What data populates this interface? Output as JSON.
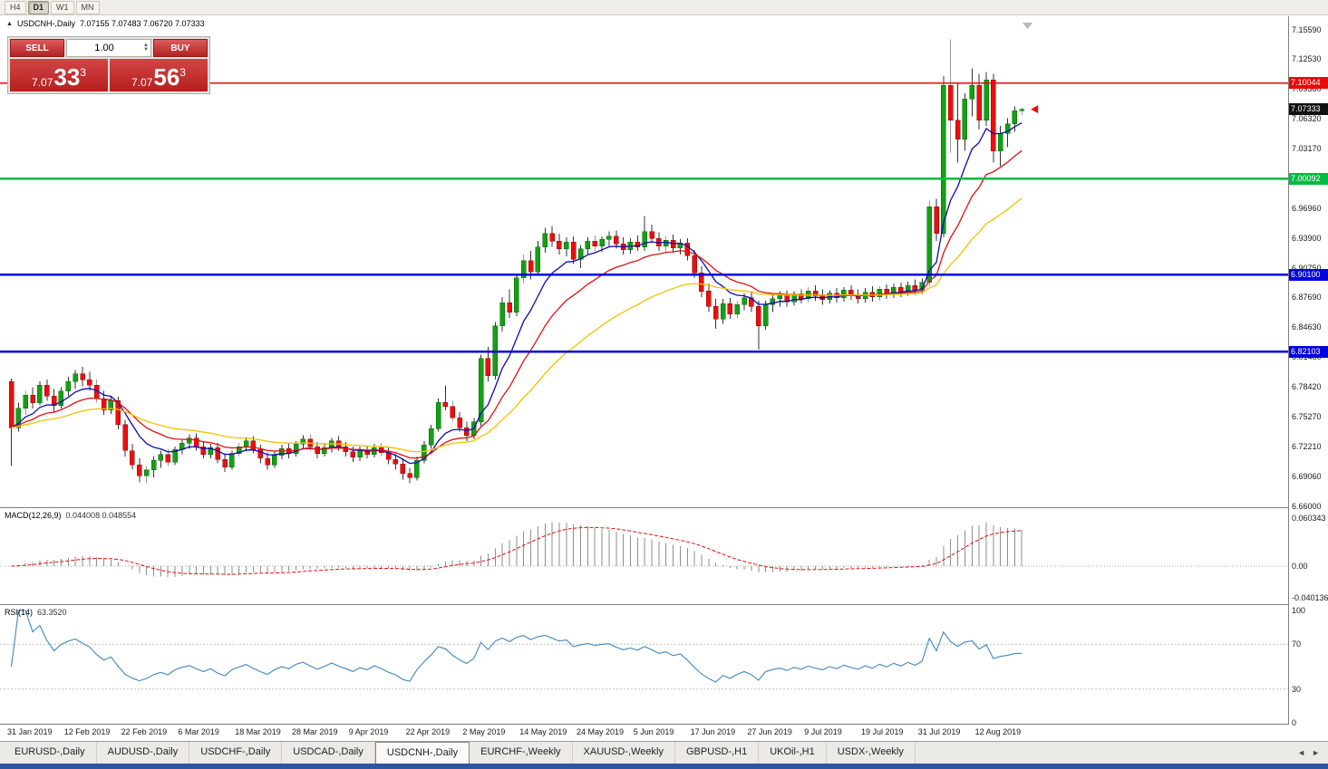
{
  "window": {
    "toolbar_periods": [
      {
        "label": "H4",
        "active": false
      },
      {
        "label": "D1",
        "active": true
      },
      {
        "label": "W1",
        "active": false
      },
      {
        "label": "MN",
        "active": false
      }
    ]
  },
  "chart": {
    "symbol_title": "USDCNH-,Daily",
    "ohlc_text": "7.07155 7.07483 7.06720 7.07333",
    "collapse_icon": "▲",
    "trade_widget": {
      "sell_label": "SELL",
      "buy_label": "BUY",
      "volume": "1.00",
      "spin_up": "▲",
      "spin_down": "▼",
      "sell_price": {
        "head": "7.07",
        "pips": "33",
        "sup": "3"
      },
      "buy_price": {
        "head": "7.07",
        "pips": "56",
        "sup": "3"
      }
    },
    "price_axis": [
      "7.15590",
      "7.12530",
      "7.09380",
      "7.06320",
      "7.03170",
      "7.00110",
      "6.96960",
      "6.93900",
      "6.90750",
      "6.87690",
      "6.84630",
      "6.81480",
      "6.78420",
      "6.75270",
      "6.72210",
      "6.69060",
      "6.66000"
    ],
    "levels": [
      {
        "value": 7.10044,
        "label": "7.10044",
        "color": "#e80b0b",
        "width": 1.4,
        "type": "resistance"
      },
      {
        "value": 7.00092,
        "label": "7.00092",
        "color": "#00bb44",
        "width": 2.4,
        "type": "support"
      },
      {
        "value": 6.901,
        "label": "6.90100",
        "color": "#0202dd",
        "width": 2.4,
        "type": "support"
      },
      {
        "value": 6.82103,
        "label": "6.82103",
        "color": "#0202dd",
        "width": 2.4,
        "type": "support"
      }
    ],
    "current_price": {
      "value": 7.07333,
      "label": "7.07333",
      "tag_color": "#111111"
    },
    "dates": [
      "31 Jan 2019",
      "12 Feb 2019",
      "22 Feb 2019",
      "6 Mar 2019",
      "18 Mar 2019",
      "28 Mar 2019",
      "9 Apr 2019",
      "22 Apr 2019",
      "2 May 2019",
      "14 May 2019",
      "24 May 2019",
      "5 Jun 2019",
      "17 Jun 2019",
      "27 Jun 2019",
      "9 Jul 2019",
      "19 Jul 2019",
      "31 Jul 2019",
      "12 Aug 2019"
    ]
  },
  "macd_panel": {
    "label": "MACD(12,26,9)",
    "values": "0.044008 0.048554",
    "axis": [
      "0.060343",
      "0.00",
      "-0.040136"
    ]
  },
  "rsi_panel": {
    "label": "RSI(14)",
    "value": "63.3520",
    "axis": [
      "100",
      "70",
      "30",
      "0"
    ],
    "guide_levels": [
      70,
      30
    ]
  },
  "tabs": {
    "items": [
      {
        "label": "EURUSD-,Daily",
        "active": false
      },
      {
        "label": "AUDUSD-,Daily",
        "active": false
      },
      {
        "label": "USDCHF-,Daily",
        "active": false
      },
      {
        "label": "USDCAD-,Daily",
        "active": false
      },
      {
        "label": "USDCNH-,Daily",
        "active": true
      },
      {
        "label": "EURCHF-,Weekly",
        "active": false
      },
      {
        "label": "XAUUSD-,Weekly",
        "active": false
      },
      {
        "label": "GBPUSD-,H1",
        "active": false
      },
      {
        "label": "UKOil-,H1",
        "active": false
      },
      {
        "label": "USDX-,Weekly",
        "active": false
      }
    ],
    "scroll_left": "◄",
    "scroll_right": "►"
  },
  "chart_data": {
    "type": "candlestick",
    "symbol": "USDCNH",
    "timeframe": "Daily",
    "price_range": [
      6.66,
      7.1559
    ],
    "x_tick_step_candles": 8,
    "up_color": "#12a112",
    "down_color": "#ed0e0e",
    "up_border": "#066306",
    "down_border": "#8f0404",
    "wick_color": "#333333",
    "moving_averages": [
      {
        "name": "fast-ma",
        "color": "#0b0bb0",
        "period": 8
      },
      {
        "name": "medium-ma",
        "color": "#e01010",
        "period": 16
      },
      {
        "name": "slow-ma",
        "color": "#f2c200",
        "period": 34
      }
    ],
    "indicators": {
      "macd": {
        "params": [
          12,
          26,
          9
        ],
        "current": 0.044008,
        "signal": 0.048554,
        "axis_range": [
          -0.040136,
          0.060343
        ]
      },
      "rsi": {
        "period": 14,
        "current": 63.352,
        "axis_range": [
          0,
          100
        ],
        "guides": [
          30,
          70
        ]
      }
    },
    "candles": [
      [
        6.79,
        6.793,
        6.702,
        6.742
      ],
      [
        6.742,
        6.768,
        6.738,
        6.762
      ],
      [
        6.762,
        6.78,
        6.755,
        6.776
      ],
      [
        6.776,
        6.784,
        6.762,
        6.768
      ],
      [
        6.768,
        6.79,
        6.765,
        6.786
      ],
      [
        6.786,
        6.792,
        6.77,
        6.775
      ],
      [
        6.775,
        6.782,
        6.758,
        6.765
      ],
      [
        6.765,
        6.784,
        6.762,
        6.78
      ],
      [
        6.78,
        6.795,
        6.775,
        6.79
      ],
      [
        6.79,
        6.802,
        6.782,
        6.798
      ],
      [
        6.798,
        6.805,
        6.785,
        6.792
      ],
      [
        6.792,
        6.8,
        6.78,
        6.786
      ],
      [
        6.786,
        6.792,
        6.768,
        6.772
      ],
      [
        6.772,
        6.78,
        6.755,
        6.76
      ],
      [
        6.76,
        6.775,
        6.756,
        6.77
      ],
      [
        6.77,
        6.774,
        6.74,
        6.745
      ],
      [
        6.745,
        6.75,
        6.712,
        6.718
      ],
      [
        6.718,
        6.725,
        6.698,
        6.703
      ],
      [
        6.703,
        6.71,
        6.685,
        6.692
      ],
      [
        6.692,
        6.702,
        6.684,
        6.698
      ],
      [
        6.698,
        6.712,
        6.69,
        6.708
      ],
      [
        6.708,
        6.718,
        6.7,
        6.714
      ],
      [
        6.714,
        6.72,
        6.702,
        6.706
      ],
      [
        6.706,
        6.722,
        6.703,
        6.719
      ],
      [
        6.719,
        6.73,
        6.714,
        6.726
      ],
      [
        6.726,
        6.735,
        6.72,
        6.731
      ],
      [
        6.731,
        6.736,
        6.718,
        6.722
      ],
      [
        6.722,
        6.728,
        6.71,
        6.714
      ],
      [
        6.714,
        6.725,
        6.71,
        6.721
      ],
      [
        6.721,
        6.726,
        6.705,
        6.709
      ],
      [
        6.709,
        6.715,
        6.696,
        6.701
      ],
      [
        6.701,
        6.718,
        6.698,
        6.715
      ],
      [
        6.715,
        6.726,
        6.712,
        6.722
      ],
      [
        6.722,
        6.732,
        6.717,
        6.728
      ],
      [
        6.728,
        6.733,
        6.715,
        6.719
      ],
      [
        6.719,
        6.724,
        6.705,
        6.71
      ],
      [
        6.71,
        6.716,
        6.698,
        6.703
      ],
      [
        6.703,
        6.717,
        6.7,
        6.713
      ],
      [
        6.713,
        6.724,
        6.709,
        6.72
      ],
      [
        6.72,
        6.726,
        6.71,
        6.715
      ],
      [
        6.715,
        6.728,
        6.712,
        6.725
      ],
      [
        6.725,
        6.734,
        6.72,
        6.73
      ],
      [
        6.73,
        6.735,
        6.718,
        6.722
      ],
      [
        6.722,
        6.727,
        6.71,
        6.715
      ],
      [
        6.715,
        6.726,
        6.712,
        6.721
      ],
      [
        6.721,
        6.731,
        6.716,
        6.728
      ],
      [
        6.728,
        6.733,
        6.718,
        6.722
      ],
      [
        6.722,
        6.727,
        6.712,
        6.717
      ],
      [
        6.717,
        6.722,
        6.706,
        6.711
      ],
      [
        6.711,
        6.722,
        6.707,
        6.718
      ],
      [
        6.718,
        6.723,
        6.71,
        6.714
      ],
      [
        6.714,
        6.725,
        6.711,
        6.721
      ],
      [
        6.721,
        6.726,
        6.712,
        6.716
      ],
      [
        6.716,
        6.721,
        6.704,
        6.709
      ],
      [
        6.709,
        6.714,
        6.698,
        6.704
      ],
      [
        6.704,
        6.71,
        6.688,
        6.694
      ],
      [
        6.694,
        6.7,
        6.684,
        6.69
      ],
      [
        6.69,
        6.712,
        6.687,
        6.708
      ],
      [
        6.708,
        6.728,
        6.705,
        6.724
      ],
      [
        6.724,
        6.745,
        6.72,
        6.741
      ],
      [
        6.741,
        6.772,
        6.738,
        6.768
      ],
      [
        6.768,
        6.786,
        6.76,
        6.764
      ],
      [
        6.764,
        6.77,
        6.748,
        6.752
      ],
      [
        6.752,
        6.758,
        6.738,
        6.742
      ],
      [
        6.742,
        6.748,
        6.728,
        6.734
      ],
      [
        6.734,
        6.752,
        6.73,
        6.748
      ],
      [
        6.748,
        6.818,
        6.744,
        6.814
      ],
      [
        6.814,
        6.826,
        6.79,
        6.796
      ],
      [
        6.796,
        6.852,
        6.792,
        6.848
      ],
      [
        6.848,
        6.878,
        6.842,
        6.872
      ],
      [
        6.872,
        6.886,
        6.856,
        6.862
      ],
      [
        6.862,
        6.902,
        6.858,
        6.898
      ],
      [
        6.898,
        6.922,
        6.892,
        6.916
      ],
      [
        6.916,
        6.926,
        6.896,
        6.904
      ],
      [
        6.904,
        6.936,
        6.9,
        6.93
      ],
      [
        6.93,
        6.95,
        6.924,
        6.944
      ],
      [
        6.944,
        6.952,
        6.93,
        6.936
      ],
      [
        6.936,
        6.944,
        6.922,
        6.928
      ],
      [
        6.928,
        6.94,
        6.92,
        6.935
      ],
      [
        6.935,
        6.941,
        6.912,
        6.917
      ],
      [
        6.917,
        6.932,
        6.908,
        6.928
      ],
      [
        6.928,
        6.94,
        6.922,
        6.936
      ],
      [
        6.936,
        6.942,
        6.926,
        6.931
      ],
      [
        6.931,
        6.941,
        6.925,
        6.938
      ],
      [
        6.938,
        6.946,
        6.93,
        6.941
      ],
      [
        6.941,
        6.947,
        6.928,
        6.933
      ],
      [
        6.933,
        6.94,
        6.922,
        6.927
      ],
      [
        6.927,
        6.939,
        6.923,
        6.935
      ],
      [
        6.935,
        6.942,
        6.926,
        6.93
      ],
      [
        6.93,
        6.962,
        6.926,
        6.946
      ],
      [
        6.946,
        6.953,
        6.934,
        6.939
      ],
      [
        6.939,
        6.945,
        6.926,
        6.931
      ],
      [
        6.931,
        6.941,
        6.925,
        6.937
      ],
      [
        6.937,
        6.943,
        6.924,
        6.929
      ],
      [
        6.929,
        6.938,
        6.922,
        6.934
      ],
      [
        6.934,
        6.939,
        6.916,
        6.921
      ],
      [
        6.921,
        6.927,
        6.898,
        6.903
      ],
      [
        6.903,
        6.91,
        6.878,
        6.884
      ],
      [
        6.884,
        6.892,
        6.862,
        6.868
      ],
      [
        6.868,
        6.876,
        6.845,
        6.855
      ],
      [
        6.855,
        6.876,
        6.85,
        6.871
      ],
      [
        6.871,
        6.877,
        6.855,
        6.86
      ],
      [
        6.86,
        6.874,
        6.856,
        6.87
      ],
      [
        6.87,
        6.882,
        6.864,
        6.877
      ],
      [
        6.877,
        6.883,
        6.862,
        6.868
      ],
      [
        6.868,
        6.874,
        6.823,
        6.848
      ],
      [
        6.848,
        6.874,
        6.844,
        6.87
      ],
      [
        6.87,
        6.88,
        6.862,
        6.876
      ],
      [
        6.876,
        6.884,
        6.868,
        6.88
      ],
      [
        6.88,
        6.885,
        6.868,
        6.873
      ],
      [
        6.873,
        6.884,
        6.869,
        6.881
      ],
      [
        6.881,
        6.886,
        6.871,
        6.876
      ],
      [
        6.876,
        6.888,
        6.872,
        6.884
      ],
      [
        6.884,
        6.89,
        6.874,
        6.879
      ],
      [
        6.879,
        6.886,
        6.87,
        6.875
      ],
      [
        6.875,
        6.885,
        6.871,
        6.882
      ],
      [
        6.882,
        6.887,
        6.872,
        6.877
      ],
      [
        6.877,
        6.888,
        6.873,
        6.885
      ],
      [
        6.885,
        6.89,
        6.875,
        6.88
      ],
      [
        6.88,
        6.886,
        6.871,
        6.876
      ],
      [
        6.876,
        6.887,
        6.872,
        6.883
      ],
      [
        6.883,
        6.889,
        6.873,
        6.878
      ],
      [
        6.878,
        6.889,
        6.874,
        6.886
      ],
      [
        6.886,
        6.891,
        6.876,
        6.881
      ],
      [
        6.881,
        6.892,
        6.877,
        6.888
      ],
      [
        6.888,
        6.893,
        6.878,
        6.883
      ],
      [
        6.883,
        6.894,
        6.879,
        6.89
      ],
      [
        6.89,
        6.896,
        6.88,
        6.885
      ],
      [
        6.885,
        6.897,
        6.881,
        6.893
      ],
      [
        6.893,
        6.978,
        6.889,
        6.972
      ],
      [
        6.972,
        6.98,
        6.936,
        6.944
      ],
      [
        6.944,
        7.108,
        6.94,
        7.098
      ],
      [
        7.098,
        7.146,
        7.028,
        7.062
      ],
      [
        7.062,
        7.1,
        7.018,
        7.042
      ],
      [
        7.042,
        7.09,
        7.03,
        7.084
      ],
      [
        7.084,
        7.116,
        7.066,
        7.098
      ],
      [
        7.098,
        7.11,
        7.052,
        7.062
      ],
      [
        7.062,
        7.112,
        7.056,
        7.104
      ],
      [
        7.104,
        7.11,
        7.018,
        7.03
      ],
      [
        7.03,
        7.056,
        7.014,
        7.048
      ],
      [
        7.048,
        7.064,
        7.034,
        7.058
      ],
      [
        7.058,
        7.076,
        7.05,
        7.0716
      ],
      [
        7.0716,
        7.0748,
        7.0672,
        7.0733
      ]
    ]
  }
}
